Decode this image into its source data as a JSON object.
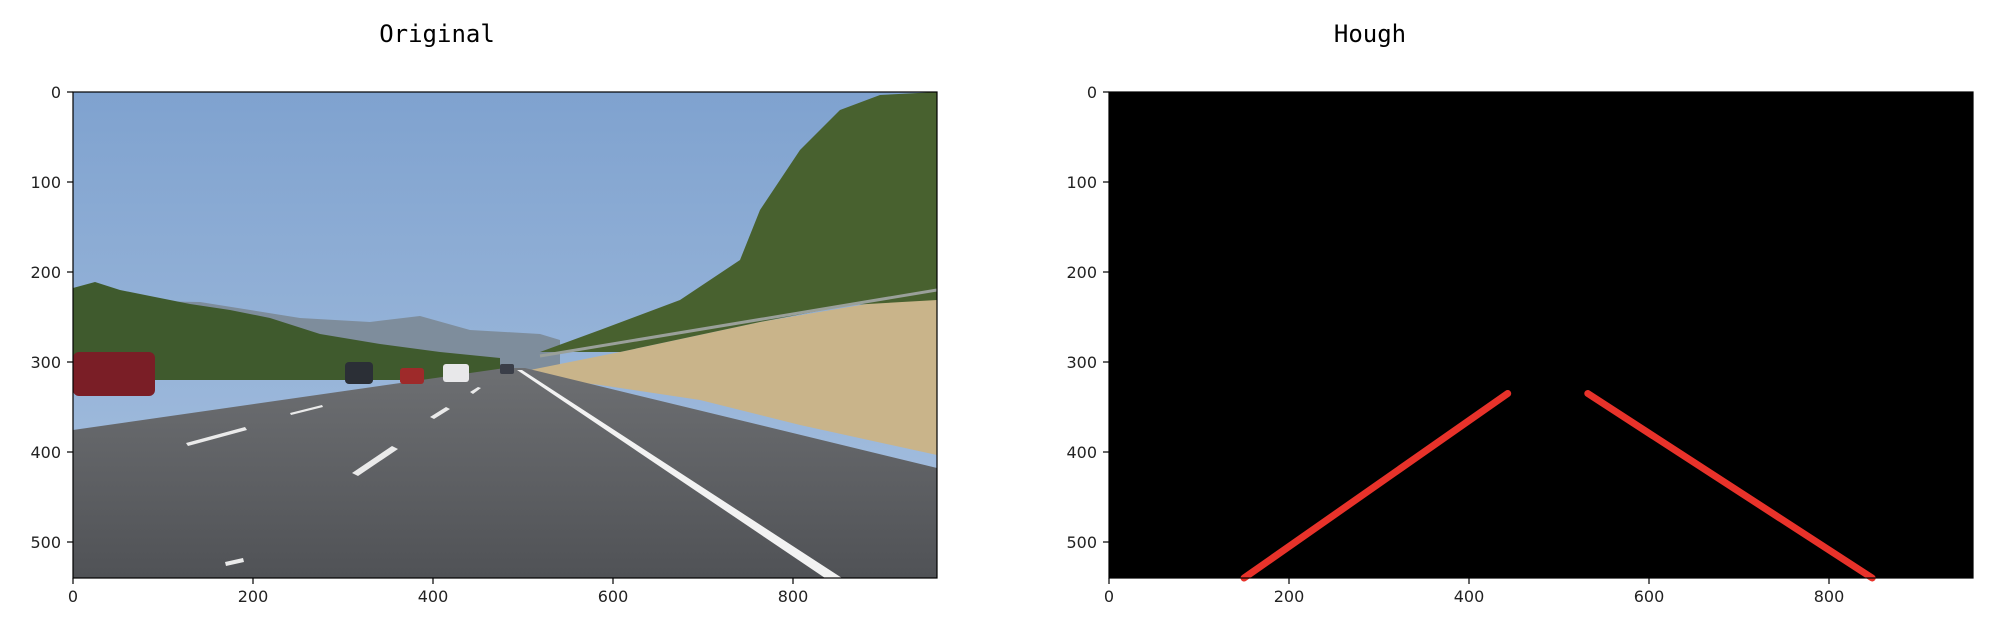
{
  "chart_data": [
    {
      "type": "image",
      "title": "Original",
      "image_width": 960,
      "image_height": 540,
      "xticks": [
        0,
        200,
        400,
        600,
        800
      ],
      "yticks": [
        0,
        100,
        200,
        300,
        400,
        500
      ],
      "content": "road scene photograph",
      "colors": {
        "sky": "#8fb0d6",
        "road": "#5f6166",
        "lane_marking": "#ffffff",
        "grass": "#c9b58c",
        "trees": "#3e5a2c"
      }
    },
    {
      "type": "image",
      "title": "Hough",
      "image_width": 960,
      "image_height": 540,
      "xticks": [
        0,
        200,
        400,
        600,
        800
      ],
      "yticks": [
        0,
        100,
        200,
        300,
        400,
        500
      ],
      "background": "#000000",
      "lines": [
        {
          "x1": 150,
          "y1": 540,
          "x2": 443,
          "y2": 335,
          "color": "#e8322a"
        },
        {
          "x1": 532,
          "y1": 335,
          "x2": 848,
          "y2": 540,
          "color": "#e8322a"
        }
      ]
    }
  ]
}
